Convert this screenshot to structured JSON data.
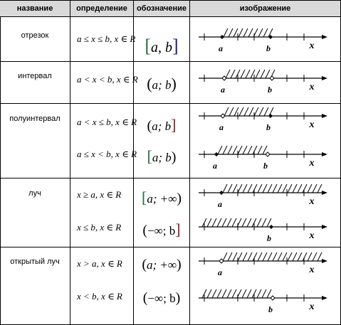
{
  "header": {
    "col_name": "название",
    "col_definition": "определение",
    "col_notation": "обозначение",
    "col_image": "изображение"
  },
  "rows": [
    {
      "name": "отрезок",
      "definition": "a ≤ x ≤ b,  x ∈ R",
      "notation_left": "[",
      "notation_body": "a, b",
      "notation_right": "]",
      "axis_a": "a",
      "axis_b": "b",
      "axis_x": "x"
    },
    {
      "name": "интервал",
      "definition": "a < x < b,  x ∈ R",
      "notation_left": "(",
      "notation_body": "a; b",
      "notation_right": ")",
      "axis_a": "a",
      "axis_b": "b",
      "axis_x": "x"
    },
    {
      "name": "полуинтервал",
      "definition": "a < x ≤ b,  x ∈ R",
      "notation_left": "(",
      "notation_body": "a; b",
      "notation_right": "]",
      "axis_a": "a",
      "axis_b": "b",
      "axis_x": "x"
    },
    {
      "name": "",
      "definition": "a ≤ x < b,  x ∈ R",
      "notation_left": "[",
      "notation_body": "a; b",
      "notation_right": ")",
      "axis_a": "a",
      "axis_b": "b",
      "axis_x": "x"
    },
    {
      "name": "луч",
      "definition": "x ≥ a,  x ∈ R",
      "notation_left": "[",
      "notation_body": "a; +∞",
      "notation_right": ")",
      "axis_a": "a",
      "axis_b": "",
      "axis_x": "x"
    },
    {
      "name": "",
      "definition": "x ≤ b,  x ∈ R",
      "notation_left": "(",
      "notation_body": "−∞; b",
      "notation_right": "]",
      "axis_a": "",
      "axis_b": "b",
      "axis_x": "x"
    },
    {
      "name": "открытый луч",
      "definition": "x > a,  x ∈ R",
      "notation_left": "(",
      "notation_body": "a; +∞",
      "notation_right": ")",
      "axis_a": "a",
      "axis_b": "",
      "axis_x": "x"
    },
    {
      "name": "",
      "definition": "x < b,  x ∈ R",
      "notation_left": "(",
      "notation_body": "−∞; b",
      "notation_right": ")",
      "axis_a": "",
      "axis_b": "b",
      "axis_x": "x"
    }
  ],
  "colors": {
    "bracket_closed": "#1f6b3a",
    "bracket_closed_right": "#1a1a8c",
    "ink": "#000000",
    "header_bg": "#d9d9d9"
  }
}
